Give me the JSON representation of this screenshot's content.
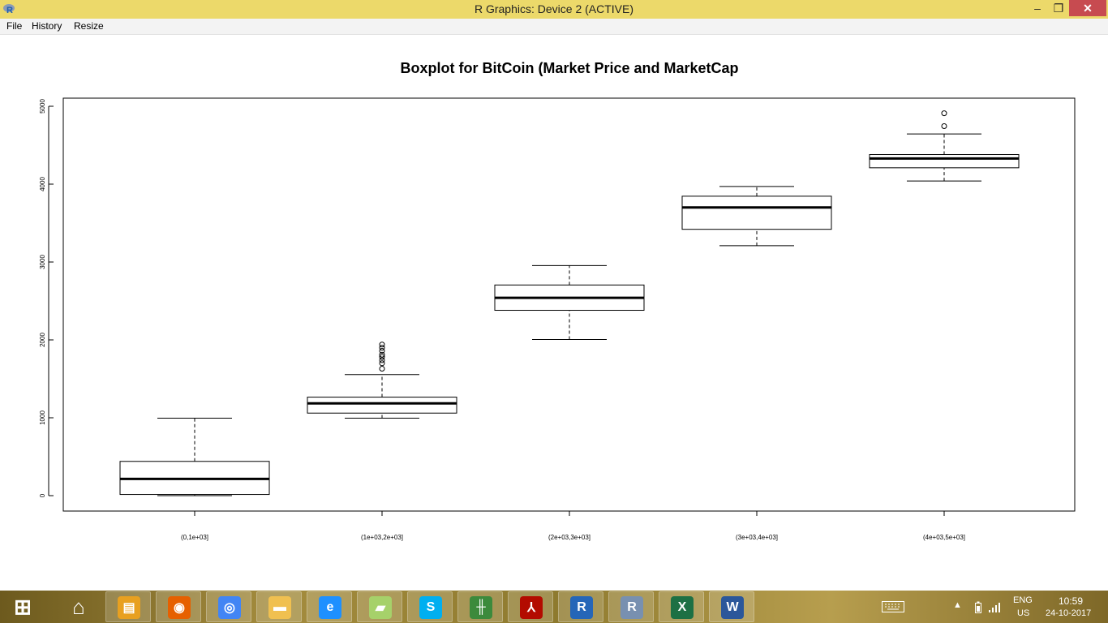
{
  "window": {
    "title": "R Graphics: Device 2 (ACTIVE)",
    "minimize": "–",
    "restore": "❐",
    "close": "✕"
  },
  "menu": {
    "file": "File",
    "history": "History",
    "resize": "Resize"
  },
  "chart_data": {
    "type": "box",
    "title": "Boxplot for BitCoin (Market Price and MarketCap",
    "xlabel": "",
    "ylabel": "",
    "ylim": [
      -200,
      5100
    ],
    "y_ticks": [
      0,
      1000,
      2000,
      3000,
      4000,
      5000
    ],
    "y_tick_labels": [
      "0",
      "1000",
      "2000",
      "3000",
      "4000",
      "5000"
    ],
    "grid": false,
    "categories": [
      "(0,1e+03]",
      "(1e+03,2e+03]",
      "(2e+03,3e+03]",
      "(3e+03,4e+03]",
      "(4e+03,5e+03]"
    ],
    "boxes": [
      {
        "category": "(0,1e+03]",
        "whisker_low": 0,
        "q1": 15,
        "median": 215,
        "q3": 440,
        "whisker_high": 995,
        "outliers": []
      },
      {
        "category": "(1e+03,2e+03]",
        "whisker_low": 995,
        "q1": 1060,
        "median": 1185,
        "q3": 1265,
        "whisker_high": 1555,
        "outliers": [
          1630,
          1700,
          1740,
          1780,
          1810,
          1860,
          1900,
          1940
        ]
      },
      {
        "category": "(2e+03,3e+03]",
        "whisker_low": 2005,
        "q1": 2380,
        "median": 2540,
        "q3": 2705,
        "whisker_high": 2955,
        "outliers": []
      },
      {
        "category": "(3e+03,4e+03]",
        "whisker_low": 3210,
        "q1": 3420,
        "median": 3700,
        "q3": 3845,
        "whisker_high": 3970,
        "outliers": []
      },
      {
        "category": "(4e+03,5e+03]",
        "whisker_low": 4040,
        "q1": 4210,
        "median": 4330,
        "q3": 4380,
        "whisker_high": 4645,
        "outliers": [
          4745,
          4910
        ]
      }
    ]
  },
  "taskbar": {
    "apps": [
      {
        "name": "start",
        "icon": "windows-icon",
        "color": "#ffffff"
      },
      {
        "name": "home",
        "icon": "home-icon",
        "color": "#ffffff"
      },
      {
        "name": "notes",
        "icon": "notes-icon",
        "color": "#e8a020"
      },
      {
        "name": "firefox",
        "icon": "firefox-icon",
        "color": "#e66000"
      },
      {
        "name": "chrome",
        "icon": "chrome-icon",
        "color": "#4285f4"
      },
      {
        "name": "explorer",
        "icon": "folder-icon",
        "color": "#f0c050"
      },
      {
        "name": "ie",
        "icon": "ie-icon",
        "color": "#1e90ff"
      },
      {
        "name": "sticky",
        "icon": "sticky-icon",
        "color": "#a6d16a"
      },
      {
        "name": "skype",
        "icon": "skype-icon",
        "color": "#00aff0"
      },
      {
        "name": "chart-app",
        "icon": "chart-app-icon",
        "color": "#3c8a3c"
      },
      {
        "name": "acrobat",
        "icon": "acrobat-icon",
        "color": "#b30b00"
      },
      {
        "name": "r-gui",
        "icon": "r-icon",
        "color": "#2566b8"
      },
      {
        "name": "r-studio",
        "icon": "r-studio-icon",
        "color": "#7890b0"
      },
      {
        "name": "excel",
        "icon": "excel-icon",
        "color": "#1d7044"
      },
      {
        "name": "word",
        "icon": "word-icon",
        "color": "#2b579a"
      }
    ],
    "tray": {
      "language": "ENG",
      "region": "US",
      "time": "10:59",
      "date": "24-10-2017"
    }
  }
}
